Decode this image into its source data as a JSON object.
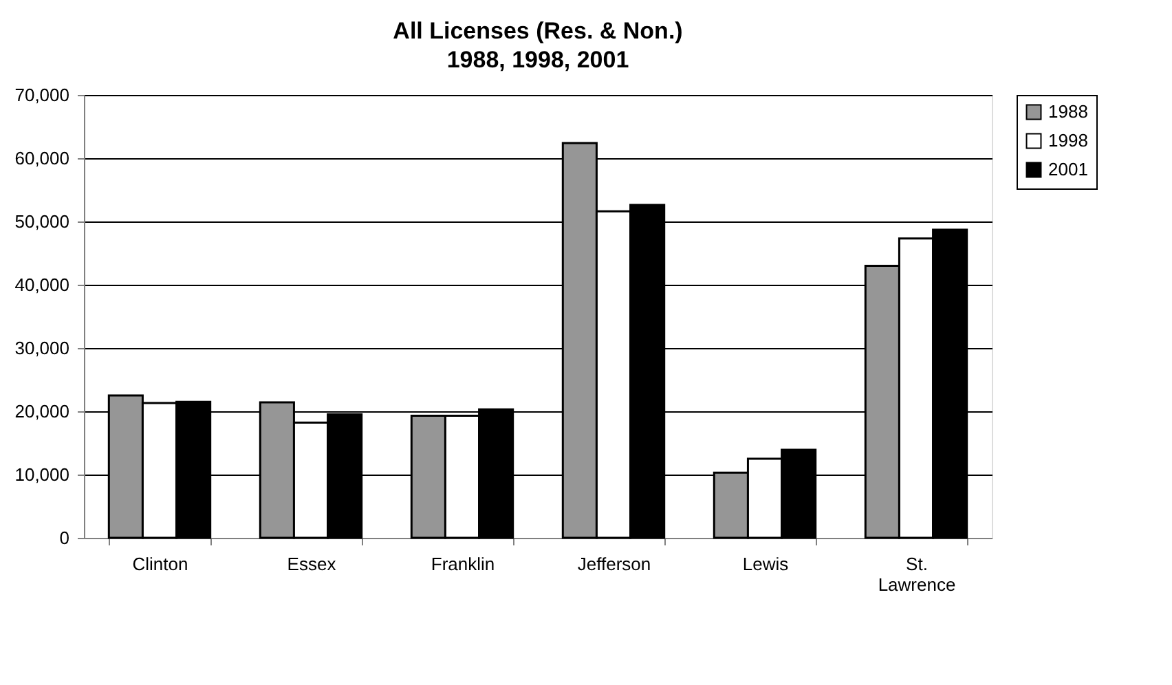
{
  "chart_data": {
    "type": "bar",
    "title": "All Licenses (Res. & Non.)",
    "subtitle": "1988,   1998,   2001",
    "categories": [
      "Clinton",
      "Essex",
      "Franklin",
      "Jefferson",
      "Lewis",
      "St. Lawrence"
    ],
    "series": [
      {
        "name": "1988",
        "color": "#969696",
        "values": [
          22500,
          21400,
          19300,
          62400,
          10300,
          43000
        ]
      },
      {
        "name": "1998",
        "color": "#ffffff",
        "values": [
          21300,
          18200,
          19300,
          51600,
          12500,
          47300
        ]
      },
      {
        "name": "2001",
        "color": "#000000",
        "values": [
          21500,
          19500,
          20300,
          52600,
          13900,
          48700
        ]
      }
    ],
    "ylim": [
      0,
      70000
    ],
    "yticks": [
      0,
      {
        "value": 10000,
        "label": "10,000"
      },
      {
        "value": 20000,
        "label": "20,000"
      },
      {
        "value": 30000,
        "label": "30,000"
      },
      {
        "value": 40000,
        "label": "40,000"
      },
      {
        "value": 50000,
        "label": "50,000"
      },
      {
        "value": 60000,
        "label": "60,000"
      },
      {
        "value": 70000,
        "label": "70,000"
      }
    ],
    "grid": "y",
    "legend": "right"
  }
}
